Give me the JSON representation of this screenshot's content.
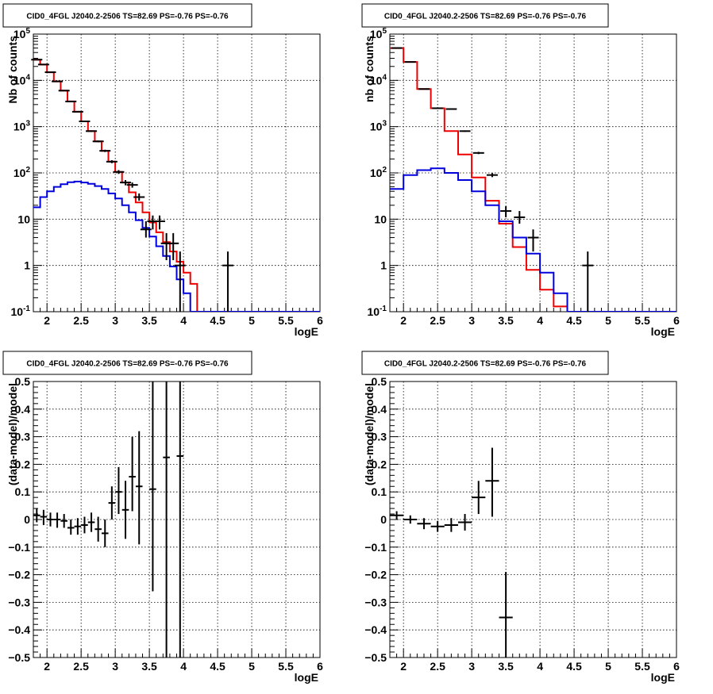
{
  "chart_data": [
    {
      "type": "line",
      "title": "CID0_4FGL J2040.2-2506 TS=82.69 PS=-0.76 PS=-0.76",
      "xlabel": "logE",
      "ylabel": "Nb of counts",
      "xlim": [
        1.8,
        6.0
      ],
      "ylim": [
        0.1,
        100000
      ],
      "log_y": true,
      "grid": true,
      "x_ticks": [
        "2",
        "2.5",
        "3",
        "3.5",
        "4",
        "4.5",
        "5",
        "5.5",
        "6"
      ],
      "y_ticks": [
        "10^-1",
        "1",
        "10",
        "10^2",
        "10^3",
        "10^4",
        "10^5"
      ],
      "bin_edges": [
        1.8,
        1.9,
        2.0,
        2.1,
        2.2,
        2.3,
        2.4,
        2.5,
        2.6,
        2.7,
        2.8,
        2.9,
        3.0,
        3.1,
        3.2,
        3.3,
        3.4,
        3.5,
        3.6,
        3.7,
        3.8,
        3.9,
        4.0,
        4.1,
        4.2,
        4.3,
        4.4,
        4.5,
        4.6,
        4.7,
        4.8,
        4.9,
        5.0,
        5.1,
        5.2,
        5.3,
        5.4,
        5.5,
        5.6,
        5.7,
        5.8,
        5.9,
        6.0
      ],
      "series": [
        {
          "color": "#ee0000",
          "values": [
            28000,
            22000,
            15000,
            9500,
            6000,
            3500,
            2100,
            1300,
            800,
            480,
            300,
            175,
            105,
            62,
            38,
            23,
            14,
            8.5,
            5.2,
            3.2,
            2.0,
            1.2,
            0.7,
            0.4,
            0.1,
            0.1,
            0.1,
            0.1,
            0.1,
            0.1,
            0.1,
            0.1,
            0.1,
            0.1,
            0.1,
            0.1,
            0.1,
            0.1,
            0.1,
            0.1,
            0.1,
            0.1
          ]
        },
        {
          "color": "#0000dd",
          "values": [
            18,
            30,
            40,
            50,
            57,
            63,
            65,
            62,
            58,
            52,
            45,
            36,
            28,
            20,
            14,
            9.5,
            6.5,
            4.2,
            2.6,
            1.6,
            0.95,
            0.5,
            0.25,
            0.1,
            0.1,
            0.1,
            0.1,
            0.1,
            0.1,
            0.1,
            0.1,
            0.1,
            0.1,
            0.1,
            0.1,
            0.1,
            0.1,
            0.1,
            0.1,
            0.1,
            0.1,
            0.1
          ]
        }
      ],
      "points": [
        {
          "x": 1.85,
          "y": 28000,
          "ylo": 27800,
          "yhi": 28200
        },
        {
          "x": 1.95,
          "y": 22000,
          "ylo": 21800,
          "yhi": 22200
        },
        {
          "x": 2.05,
          "y": 15000,
          "ylo": 14850,
          "yhi": 15150
        },
        {
          "x": 2.15,
          "y": 9500,
          "ylo": 9400,
          "yhi": 9600
        },
        {
          "x": 2.25,
          "y": 6000,
          "ylo": 5920,
          "yhi": 6080
        },
        {
          "x": 2.35,
          "y": 3500,
          "ylo": 3440,
          "yhi": 3560
        },
        {
          "x": 2.45,
          "y": 2100,
          "ylo": 2050,
          "yhi": 2150
        },
        {
          "x": 2.55,
          "y": 1300,
          "ylo": 1260,
          "yhi": 1340
        },
        {
          "x": 2.65,
          "y": 800,
          "ylo": 770,
          "yhi": 830
        },
        {
          "x": 2.75,
          "y": 480,
          "ylo": 460,
          "yhi": 500
        },
        {
          "x": 2.85,
          "y": 300,
          "ylo": 283,
          "yhi": 317
        },
        {
          "x": 2.95,
          "y": 175,
          "ylo": 162,
          "yhi": 188
        },
        {
          "x": 3.05,
          "y": 105,
          "ylo": 95,
          "yhi": 115
        },
        {
          "x": 3.15,
          "y": 62,
          "ylo": 54,
          "yhi": 70
        },
        {
          "x": 3.25,
          "y": 55,
          "ylo": 48,
          "yhi": 62
        },
        {
          "x": 3.35,
          "y": 30,
          "ylo": 25,
          "yhi": 36
        },
        {
          "x": 3.45,
          "y": 6,
          "ylo": 4,
          "yhi": 9
        },
        {
          "x": 3.55,
          "y": 9,
          "ylo": 6,
          "yhi": 12
        },
        {
          "x": 3.65,
          "y": 9,
          "ylo": 6,
          "yhi": 12
        },
        {
          "x": 3.75,
          "y": 3,
          "ylo": 1.3,
          "yhi": 5
        },
        {
          "x": 3.85,
          "y": 3,
          "ylo": 1.3,
          "yhi": 5
        },
        {
          "x": 3.95,
          "y": 1,
          "ylo": 0.1,
          "yhi": 2
        },
        {
          "x": 4.65,
          "y": 1,
          "ylo": 0.1,
          "yhi": 2
        }
      ]
    },
    {
      "type": "line",
      "title": "CID0_4FGL J2040.2-2506 TS=82.69 PS=-0.76 PS=-0.76",
      "xlabel": "logE",
      "ylabel": "nb of counts",
      "xlim": [
        1.8,
        6.0
      ],
      "ylim": [
        0.1,
        100000
      ],
      "log_y": true,
      "grid": true,
      "x_ticks": [
        "2",
        "2.5",
        "3",
        "3.5",
        "4",
        "4.5",
        "5",
        "5.5",
        "6"
      ],
      "y_ticks": [
        "10^-1",
        "1",
        "10",
        "10^2",
        "10^3",
        "10^4",
        "10^5"
      ],
      "bin_edges": [
        1.8,
        2.0,
        2.2,
        2.4,
        2.6,
        2.8,
        3.0,
        3.2,
        3.4,
        3.6,
        3.8,
        4.0,
        4.2,
        4.4,
        4.6,
        4.8,
        5.0,
        5.2,
        5.4,
        5.6,
        5.8,
        6.0
      ],
      "series": [
        {
          "color": "#ee0000",
          "values": [
            50000,
            25000,
            6500,
            2500,
            800,
            250,
            80,
            25,
            8,
            2.5,
            0.8,
            0.3,
            0.13,
            0.1,
            0.1,
            0.1,
            0.1,
            0.1,
            0.1,
            0.1,
            0.1
          ]
        },
        {
          "color": "#0000dd",
          "values": [
            45,
            90,
            115,
            125,
            100,
            70,
            40,
            20,
            9,
            4,
            1.8,
            0.7,
            0.25,
            0.1,
            0.1,
            0.1,
            0.1,
            0.1,
            0.1,
            0.1,
            0.1
          ]
        }
      ],
      "points": [
        {
          "x": 1.9,
          "y": 50000,
          "ylo": 49500,
          "yhi": 50500
        },
        {
          "x": 2.1,
          "y": 25000,
          "ylo": 24700,
          "yhi": 25300
        },
        {
          "x": 2.3,
          "y": 6500,
          "ylo": 6350,
          "yhi": 6650
        },
        {
          "x": 2.5,
          "y": 2500,
          "ylo": 2430,
          "yhi": 2570
        },
        {
          "x": 2.7,
          "y": 2400,
          "ylo": 2330,
          "yhi": 2470
        },
        {
          "x": 2.9,
          "y": 800,
          "ylo": 770,
          "yhi": 830
        },
        {
          "x": 3.1,
          "y": 270,
          "ylo": 255,
          "yhi": 285
        },
        {
          "x": 3.3,
          "y": 90,
          "ylo": 81,
          "yhi": 99
        },
        {
          "x": 3.5,
          "y": 15,
          "ylo": 11,
          "yhi": 19
        },
        {
          "x": 3.7,
          "y": 11,
          "ylo": 8,
          "yhi": 15
        },
        {
          "x": 3.9,
          "y": 4,
          "ylo": 2,
          "yhi": 6
        },
        {
          "x": 4.7,
          "y": 1,
          "ylo": 0.1,
          "yhi": 2
        }
      ]
    },
    {
      "type": "scatter",
      "title": "CID0_4FGL J2040.2-2506 TS=82.69 PS=-0.76 PS=-0.76",
      "xlabel": "logE",
      "ylabel": "(data-model)/model",
      "xlim": [
        1.8,
        6.0
      ],
      "ylim": [
        -0.5,
        0.5
      ],
      "grid": true,
      "x_ticks": [
        "2",
        "2.5",
        "3",
        "3.5",
        "4",
        "4.5",
        "5",
        "5.5",
        "6"
      ],
      "y_ticks": [
        "−0.5",
        "−0.4",
        "−0.3",
        "−0.2",
        "−0.1",
        "0",
        "0.1",
        "0.2",
        "0.3",
        "0.4",
        "0.5"
      ],
      "points": [
        {
          "x": 1.85,
          "y": 0.015,
          "ylo": -0.01,
          "yhi": 0.04,
          "xerr": 0.05
        },
        {
          "x": 1.95,
          "y": 0.01,
          "ylo": -0.02,
          "yhi": 0.035,
          "xerr": 0.05
        },
        {
          "x": 2.05,
          "y": 0.0,
          "ylo": -0.025,
          "yhi": 0.025,
          "xerr": 0.05
        },
        {
          "x": 2.15,
          "y": 0.0,
          "ylo": -0.03,
          "yhi": 0.025,
          "xerr": 0.05
        },
        {
          "x": 2.25,
          "y": -0.005,
          "ylo": -0.03,
          "yhi": 0.02,
          "xerr": 0.05
        },
        {
          "x": 2.35,
          "y": -0.03,
          "ylo": -0.055,
          "yhi": 0.0,
          "xerr": 0.05
        },
        {
          "x": 2.45,
          "y": -0.025,
          "ylo": -0.055,
          "yhi": 0.005,
          "xerr": 0.05
        },
        {
          "x": 2.55,
          "y": -0.02,
          "ylo": -0.05,
          "yhi": 0.01,
          "xerr": 0.05
        },
        {
          "x": 2.65,
          "y": -0.01,
          "ylo": -0.045,
          "yhi": 0.025,
          "xerr": 0.05
        },
        {
          "x": 2.75,
          "y": -0.035,
          "ylo": -0.08,
          "yhi": 0.01,
          "xerr": 0.05
        },
        {
          "x": 2.85,
          "y": -0.05,
          "ylo": -0.1,
          "yhi": 0.0,
          "xerr": 0.05
        },
        {
          "x": 2.95,
          "y": 0.06,
          "ylo": 0.0,
          "yhi": 0.12,
          "xerr": 0.05
        },
        {
          "x": 3.05,
          "y": 0.1,
          "ylo": 0.02,
          "yhi": 0.19,
          "xerr": 0.05
        },
        {
          "x": 3.15,
          "y": 0.035,
          "ylo": -0.07,
          "yhi": 0.14,
          "xerr": 0.05
        },
        {
          "x": 3.25,
          "y": 0.155,
          "ylo": 0.03,
          "yhi": 0.3,
          "xerr": 0.05
        },
        {
          "x": 3.35,
          "y": 0.12,
          "ylo": -0.09,
          "yhi": 0.32,
          "xerr": 0.05
        },
        {
          "x": 3.55,
          "y": 0.11,
          "ylo": -0.26,
          "yhi": 0.5,
          "xerr": 0.05
        },
        {
          "x": 3.75,
          "y": 0.225,
          "ylo": -0.5,
          "yhi": 0.5,
          "xerr": 0.05
        },
        {
          "x": 3.95,
          "y": 0.23,
          "ylo": -0.5,
          "yhi": 0.5,
          "xerr": 0.05
        }
      ]
    },
    {
      "type": "scatter",
      "title": "CID0_4FGL J2040.2-2506 TS=82.69 PS=-0.76 PS=-0.76",
      "xlabel": "logE",
      "ylabel": "(data-model)/model",
      "xlim": [
        1.8,
        6.0
      ],
      "ylim": [
        -0.5,
        0.5
      ],
      "grid": true,
      "x_ticks": [
        "2",
        "2.5",
        "3",
        "3.5",
        "4",
        "4.5",
        "5",
        "5.5",
        "6"
      ],
      "y_ticks": [
        "−0.5",
        "−0.4",
        "−0.3",
        "−0.2",
        "−0.1",
        "0",
        "0.1",
        "0.2",
        "0.3",
        "0.4",
        "0.5"
      ],
      "points": [
        {
          "x": 1.9,
          "y": 0.015,
          "ylo": 0.0,
          "yhi": 0.03,
          "xerr": 0.1
        },
        {
          "x": 2.1,
          "y": 0.0,
          "ylo": -0.015,
          "yhi": 0.015,
          "xerr": 0.1
        },
        {
          "x": 2.3,
          "y": -0.015,
          "ylo": -0.035,
          "yhi": 0.005,
          "xerr": 0.1
        },
        {
          "x": 2.5,
          "y": -0.025,
          "ylo": -0.045,
          "yhi": -0.005,
          "xerr": 0.1
        },
        {
          "x": 2.7,
          "y": -0.02,
          "ylo": -0.045,
          "yhi": 0.005,
          "xerr": 0.1
        },
        {
          "x": 2.9,
          "y": -0.01,
          "ylo": -0.04,
          "yhi": 0.02,
          "xerr": 0.1
        },
        {
          "x": 3.1,
          "y": 0.08,
          "ylo": 0.02,
          "yhi": 0.14,
          "xerr": 0.1
        },
        {
          "x": 3.3,
          "y": 0.14,
          "ylo": 0.01,
          "yhi": 0.26,
          "xerr": 0.1
        },
        {
          "x": 3.5,
          "y": -0.355,
          "ylo": -0.5,
          "yhi": -0.19,
          "xerr": 0.1
        }
      ]
    }
  ]
}
